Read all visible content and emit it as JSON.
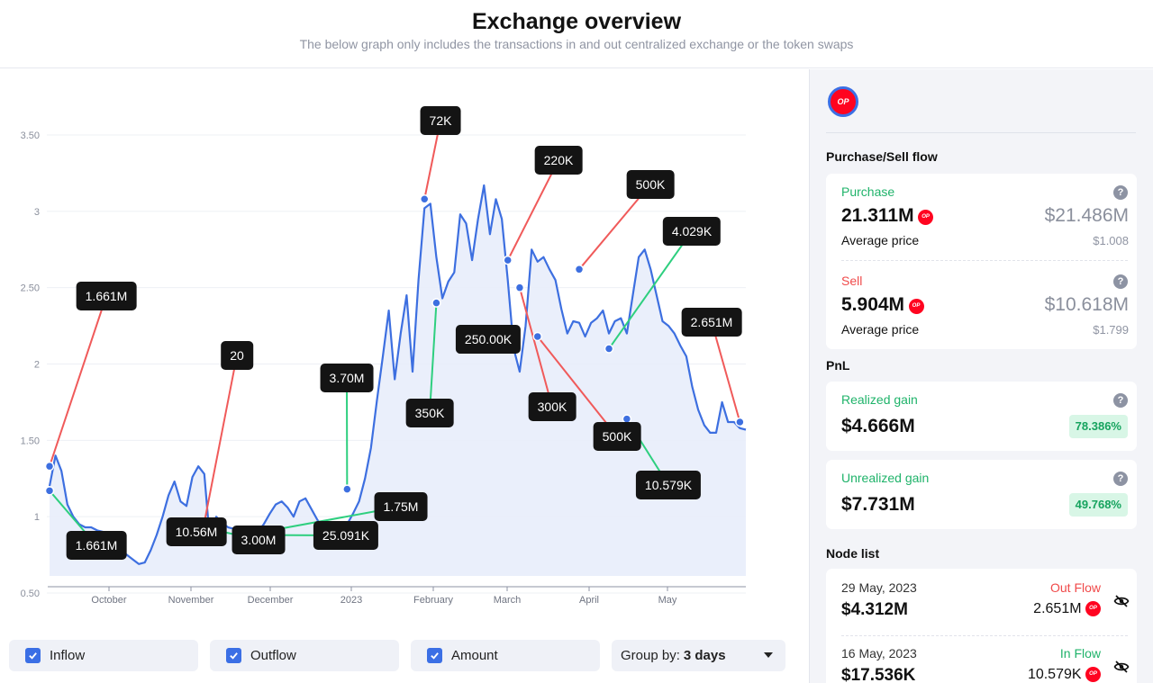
{
  "header": {
    "title": "Exchange overview",
    "subtitle": "The below graph only includes the transactions in and out centralized exchange or the token swaps"
  },
  "chart_data": {
    "type": "area",
    "ylim": [
      0.5,
      3.5
    ],
    "yticks": [
      "3.50",
      "3",
      "2.50",
      "2",
      "1.50",
      "1",
      "0.50"
    ],
    "xticks": [
      "October",
      "November",
      "December",
      "2023",
      "February",
      "March",
      "April",
      "May"
    ],
    "colors": {
      "line": "#3d6fe0",
      "fill": "#e8edfb",
      "inflow": "#2ecf7f",
      "outflow": "#f05a5a"
    },
    "series": [
      {
        "values": [
          1.2,
          1.4,
          1.3,
          1.08,
          1.0,
          0.95,
          0.93,
          0.93,
          0.91,
          0.9,
          0.88,
          0.82,
          0.78,
          0.75,
          0.72,
          0.69,
          0.7,
          0.78,
          0.88,
          1.0,
          1.14,
          1.23,
          1.1,
          1.07,
          1.26,
          1.33,
          1.28,
          0.82,
          1.0,
          0.96,
          0.93,
          0.92,
          0.91,
          0.9,
          0.89,
          0.9,
          0.95,
          1.02,
          1.08,
          1.1,
          1.06,
          1.0,
          1.1,
          1.12,
          1.05,
          0.98,
          0.92,
          0.96,
          0.95,
          0.93,
          0.95,
          1.02,
          1.1,
          1.25,
          1.45,
          1.76,
          2.05,
          2.35,
          1.9,
          2.2,
          2.45,
          1.95,
          2.55,
          3.02,
          3.05,
          2.7,
          2.43,
          2.54,
          2.6,
          2.98,
          2.92,
          2.68,
          2.95,
          3.17,
          2.85,
          3.08,
          2.95,
          2.55,
          2.1,
          1.95,
          2.25,
          2.75,
          2.67,
          2.7,
          2.62,
          2.55,
          2.36,
          2.2,
          2.28,
          2.27,
          2.18,
          2.27,
          2.3,
          2.35,
          2.2,
          2.28,
          2.3,
          2.2,
          2.45,
          2.7,
          2.75,
          2.62,
          2.45,
          2.28,
          2.25,
          2.2,
          2.12,
          2.05,
          1.85,
          1.7,
          1.6,
          1.55,
          1.55,
          1.75,
          1.62,
          1.62,
          1.58,
          1.57
        ]
      }
    ],
    "markers": [
      {
        "x": 0,
        "y": 1.33,
        "label": "1.661M",
        "flow": "out"
      },
      {
        "x": 0,
        "y": 1.17,
        "label": "1.661M",
        "flow": "in"
      },
      {
        "x": 26,
        "y": 0.96,
        "label": "20",
        "flow": "out"
      },
      {
        "x": 26,
        "y": 0.92,
        "label": "10.56M",
        "flow": "in"
      },
      {
        "x": 27,
        "y": 0.92,
        "label": "3.00M",
        "flow": "in"
      },
      {
        "x": 33,
        "y": 0.88,
        "label": "25.091K",
        "flow": "in"
      },
      {
        "x": 33,
        "y": 0.88,
        "label": "1.75M",
        "flow": "in"
      },
      {
        "x": 50,
        "y": 1.18,
        "label": "3.70M",
        "flow": "in"
      },
      {
        "x": 63,
        "y": 3.08,
        "label": "72K",
        "flow": "out"
      },
      {
        "x": 65,
        "y": 2.4,
        "label": "350K",
        "flow": "in"
      },
      {
        "x": 75,
        "y": 2.13,
        "label": "250.00K",
        "flow": "in"
      },
      {
        "x": 77,
        "y": 2.68,
        "label": "220K",
        "flow": "out"
      },
      {
        "x": 79,
        "y": 2.5,
        "label": "300K",
        "flow": "out"
      },
      {
        "x": 82,
        "y": 2.18,
        "label": "500K",
        "flow": "out"
      },
      {
        "x": 89,
        "y": 2.62,
        "label": "500K",
        "flow": "out"
      },
      {
        "x": 94,
        "y": 2.1,
        "label": "4.029K",
        "flow": "in"
      },
      {
        "x": 97,
        "y": 1.64,
        "label": "10.579K",
        "flow": "in"
      },
      {
        "x": 116,
        "y": 1.62,
        "label": "2.651M",
        "flow": "out"
      }
    ]
  },
  "controls": {
    "inflow": "Inflow",
    "outflow": "Outflow",
    "amount": "Amount",
    "group_prefix": "Group by:",
    "group_value": "3 days"
  },
  "panel": {
    "token_icon": "OP",
    "flow_title": "Purchase/Sell flow",
    "purchase": {
      "label": "Purchase",
      "amount": "21.311M",
      "usd": "$21.486M",
      "avg_label": "Average price",
      "avg_value": "$1.008"
    },
    "sell": {
      "label": "Sell",
      "amount": "5.904M",
      "usd": "$10.618M",
      "avg_label": "Average price",
      "avg_value": "$1.799"
    },
    "pnl_title": "PnL",
    "realized": {
      "label": "Realized gain",
      "value": "$4.666M",
      "pct": "78.386%"
    },
    "unrealized": {
      "label": "Unrealized gain",
      "value": "$7.731M",
      "pct": "49.768%"
    },
    "node_title": "Node list",
    "nodes": [
      {
        "date": "29 May, 2023",
        "flow": "Out Flow",
        "value": "$4.312M",
        "amount": "2.651M"
      },
      {
        "date": "16 May, 2023",
        "flow": "In Flow",
        "value": "$17.536K",
        "amount": "10.579K"
      }
    ]
  }
}
